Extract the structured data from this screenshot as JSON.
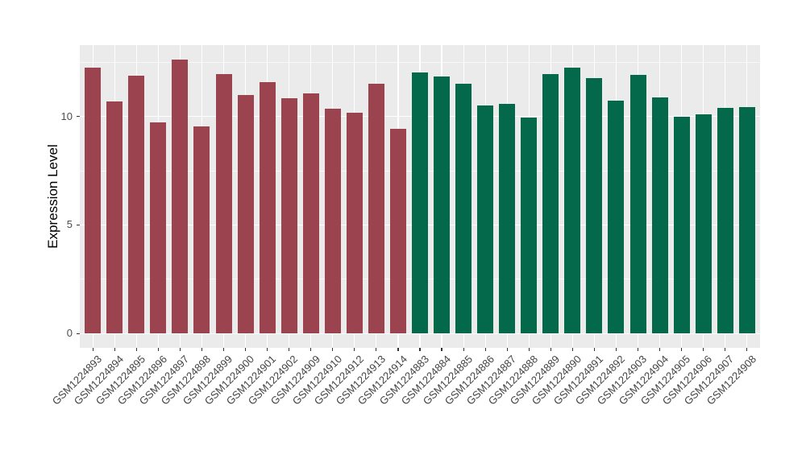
{
  "chart_data": {
    "type": "bar",
    "title": "",
    "xlabel": "",
    "ylabel": "Expression Level",
    "categories": [
      "GSM1224893",
      "GSM1224894",
      "GSM1224895",
      "GSM1224896",
      "GSM1224897",
      "GSM1224898",
      "GSM1224899",
      "GSM1224900",
      "GSM1224901",
      "GSM1224902",
      "GSM1224909",
      "GSM1224910",
      "GSM1224912",
      "GSM1224913",
      "GSM1224914",
      "GSM1224883",
      "GSM1224884",
      "GSM1224885",
      "GSM1224886",
      "GSM1224887",
      "GSM1224888",
      "GSM1224889",
      "GSM1224890",
      "GSM1224891",
      "GSM1224892",
      "GSM1224903",
      "GSM1224904",
      "GSM1224905",
      "GSM1224906",
      "GSM1224907",
      "GSM1224908"
    ],
    "values": [
      12.26,
      10.68,
      11.88,
      9.74,
      12.63,
      9.52,
      11.94,
      10.99,
      11.56,
      10.84,
      11.05,
      10.35,
      10.15,
      11.49,
      9.44,
      12.02,
      11.84,
      11.51,
      10.51,
      10.56,
      9.93,
      11.96,
      12.25,
      11.75,
      10.73,
      11.9,
      10.89,
      9.97,
      10.11,
      10.38,
      10.42
    ],
    "groups": [
      "g1",
      "g1",
      "g1",
      "g1",
      "g1",
      "g1",
      "g1",
      "g1",
      "g1",
      "g1",
      "g1",
      "g1",
      "g1",
      "g1",
      "g1",
      "g2",
      "g2",
      "g2",
      "g2",
      "g2",
      "g2",
      "g2",
      "g2",
      "g2",
      "g2",
      "g2",
      "g2",
      "g2",
      "g2",
      "g2",
      "g2"
    ],
    "group_colors": {
      "g1": "#9B4450",
      "g2": "#04684A"
    },
    "y_ticks": [
      0,
      5,
      10
    ],
    "y_tick_labels": [
      "0",
      "5",
      "10"
    ],
    "y_minor_ticks": [
      2.5,
      7.5,
      12.5
    ],
    "ylim_display": [
      -0.65,
      13.28
    ],
    "x_tick_angle": 45,
    "grid": true,
    "legend_position": "none",
    "panel_bg": "#EBEBEB",
    "grid_color": "#FFFFFF",
    "tick_label_color": "#4d4d4d",
    "axis_title_color": "#000000"
  }
}
